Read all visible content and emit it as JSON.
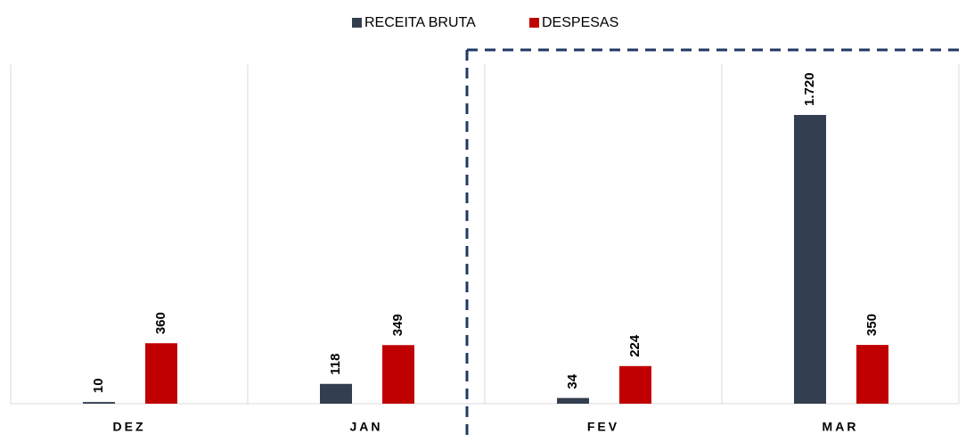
{
  "chart_data": {
    "type": "bar",
    "categories": [
      "DEZ",
      "JAN",
      "FEV",
      "MAR"
    ],
    "series": [
      {
        "name": "RECEITA BRUTA",
        "color": "#333f50",
        "values": [
          10,
          118,
          34,
          1720
        ],
        "value_labels": [
          "10",
          "118",
          "34",
          "1.720"
        ]
      },
      {
        "name": "DESPESAS",
        "color": "#c00000",
        "values": [
          360,
          349,
          224,
          350
        ],
        "value_labels": [
          "360",
          "349",
          "224",
          "350"
        ]
      }
    ]
  }
}
